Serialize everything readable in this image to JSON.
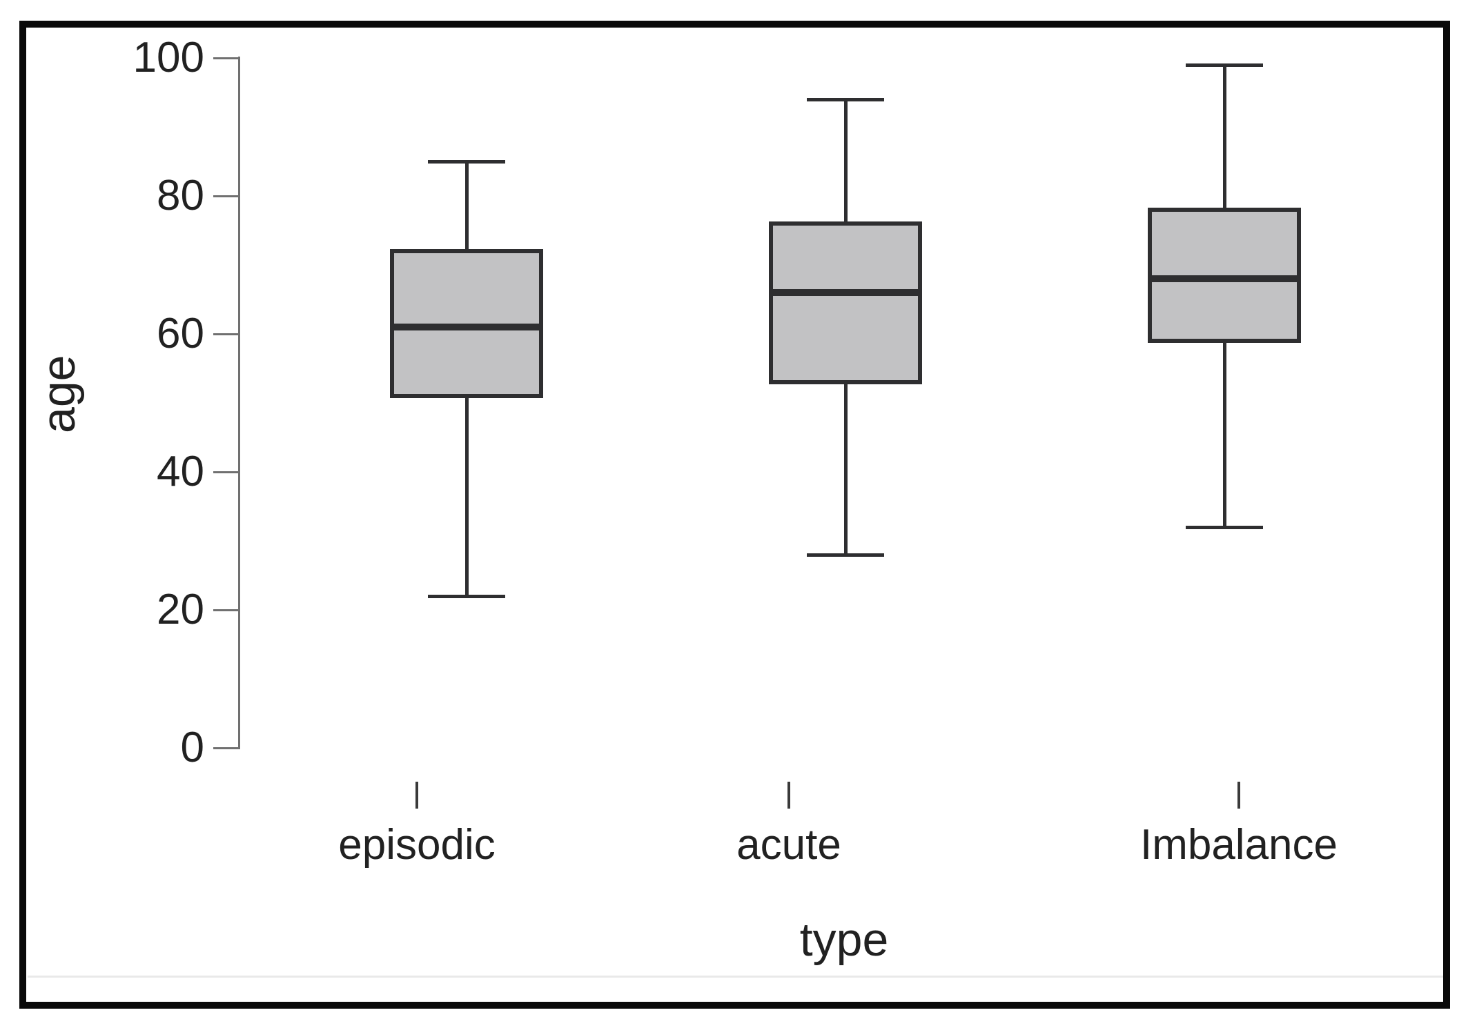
{
  "figure": {
    "y_axis_title": "age",
    "x_axis_title": "type",
    "border_color": "#0a0a0a",
    "background_color": "#ffffff"
  },
  "colors": {
    "box_fill": "#c2c2c4",
    "box_stroke": "#2e2e30",
    "axis_line": "#707070",
    "tick_text": "#212121"
  },
  "chart_data": {
    "type": "boxplot",
    "title": "",
    "xlabel": "type",
    "ylabel": "age",
    "ylim": [
      0,
      100
    ],
    "yticks": [
      0,
      20,
      40,
      60,
      80,
      100
    ],
    "grid": false,
    "legend": false,
    "categories": [
      "episodic",
      "acute",
      "Imbalance"
    ],
    "series": [
      {
        "name": "episodic",
        "min": 22,
        "q1": 51,
        "median": 61,
        "q3": 72,
        "max": 85
      },
      {
        "name": "acute",
        "min": 28,
        "q1": 53,
        "median": 66,
        "q3": 76,
        "max": 94
      },
      {
        "name": "Imbalance",
        "min": 32,
        "q1": 59,
        "median": 68,
        "q3": 78,
        "max": 99
      }
    ]
  }
}
